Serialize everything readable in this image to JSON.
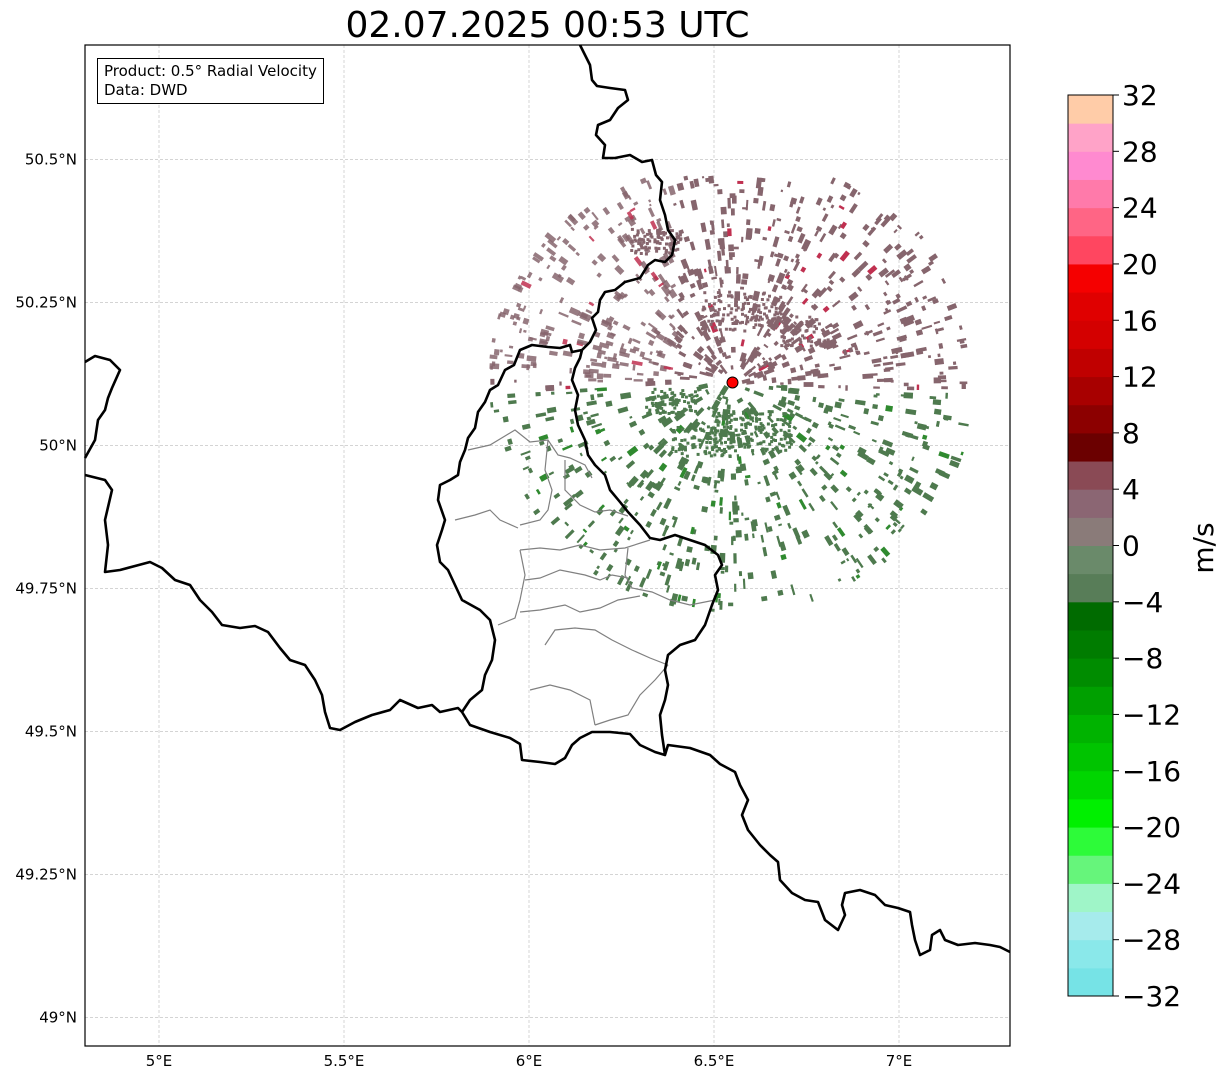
{
  "title": "02.07.2025 00:53 UTC",
  "info_box": {
    "product": "Product: 0.5° Radial Velocity",
    "data": "Data: DWD"
  },
  "map": {
    "extent": {
      "lon": [
        4.8,
        7.3
      ],
      "lat": [
        48.95,
        50.7
      ]
    },
    "lon_ticks": [
      {
        "value": 5.0,
        "label": "5°E"
      },
      {
        "value": 5.5,
        "label": "5.5°E"
      },
      {
        "value": 6.0,
        "label": "6°E"
      },
      {
        "value": 6.5,
        "label": "6.5°E"
      },
      {
        "value": 7.0,
        "label": "7°E"
      }
    ],
    "lat_ticks": [
      {
        "value": 49.0,
        "label": "49°N"
      },
      {
        "value": 49.25,
        "label": "49.25°N"
      },
      {
        "value": 49.5,
        "label": "49.5°N"
      },
      {
        "value": 49.75,
        "label": "49.75°N"
      },
      {
        "value": 50.0,
        "label": "50°N"
      },
      {
        "value": 50.25,
        "label": "50.25°N"
      },
      {
        "value": 50.5,
        "label": "50.5°N"
      }
    ],
    "gridlines": true,
    "radar_site": {
      "lon": 6.55,
      "lat": 50.11,
      "color": "#ff0000"
    },
    "border_color": "#000000",
    "admin_border_color": "#808080"
  },
  "colorbar": {
    "label": "m/s",
    "min": -32,
    "max": 32,
    "step": 4,
    "tick_labels": [
      {
        "value": 32,
        "label": "32"
      },
      {
        "value": 28,
        "label": "28"
      },
      {
        "value": 24,
        "label": "24"
      },
      {
        "value": 20,
        "label": "20"
      },
      {
        "value": 16,
        "label": "16"
      },
      {
        "value": 12,
        "label": "12"
      },
      {
        "value": 8,
        "label": "8"
      },
      {
        "value": 4,
        "label": "4"
      },
      {
        "value": 0,
        "label": "0"
      },
      {
        "value": -4,
        "label": "−4"
      },
      {
        "value": -8,
        "label": "−8"
      },
      {
        "value": -12,
        "label": "−12"
      },
      {
        "value": -16,
        "label": "−16"
      },
      {
        "value": -20,
        "label": "−20"
      },
      {
        "value": -24,
        "label": "−24"
      },
      {
        "value": -28,
        "label": "−28"
      },
      {
        "value": -32,
        "label": "−32"
      }
    ],
    "colors_bottom_to_top": [
      "#76e3e6",
      "#8ae8ea",
      "#a6ebec",
      "#9ff5c8",
      "#66f57b",
      "#2dfb39",
      "#00f000",
      "#00d600",
      "#00c400",
      "#00b300",
      "#00a000",
      "#008c00",
      "#007c00",
      "#006b00",
      "#587d58",
      "#6a8a6a",
      "#8a7b79",
      "#8b6673",
      "#8a4a55",
      "#6b0000",
      "#8c0000",
      "#a80000",
      "#c00000",
      "#d40000",
      "#e00000",
      "#f50000",
      "#ff4660",
      "#ff6585",
      "#ff7aaa",
      "#ff8ad0",
      "#ffa3c8",
      "#ffcca8"
    ]
  },
  "velocity_colors": {
    "inbound_weak": "#4e7a4e",
    "inbound_green": "#2f8a2f",
    "outbound_weak": "#86656d",
    "outbound_red": "#c03050"
  }
}
